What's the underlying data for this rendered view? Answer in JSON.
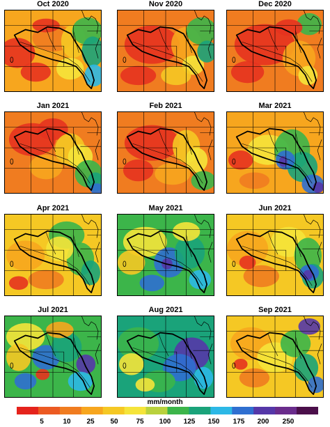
{
  "panels": [
    {
      "title": "Oct 2020",
      "base": "#f7a61e",
      "blobs": [
        [
          "#e5331f",
          18,
          62,
          26,
          22
        ],
        [
          "#e5331f",
          45,
          90,
          22,
          14
        ],
        [
          "#f07c20",
          70,
          40,
          30,
          20
        ],
        [
          "#f5c824",
          100,
          45,
          18,
          24
        ],
        [
          "#3cb54a",
          120,
          30,
          22,
          20
        ],
        [
          "#1aa37a",
          128,
          60,
          16,
          22
        ],
        [
          "#2cb8e6",
          130,
          95,
          14,
          16
        ],
        [
          "#f5e43a",
          95,
          85,
          20,
          16
        ],
        [
          "#e5331f",
          60,
          22,
          20,
          10
        ]
      ]
    },
    {
      "title": "Nov 2020",
      "base": "#f07c20",
      "blobs": [
        [
          "#e5331f",
          50,
          50,
          40,
          28
        ],
        [
          "#e5331f",
          30,
          95,
          26,
          14
        ],
        [
          "#f7a61e",
          100,
          50,
          22,
          26
        ],
        [
          "#f5e43a",
          110,
          80,
          16,
          14
        ],
        [
          "#3cb54a",
          122,
          30,
          22,
          20
        ],
        [
          "#1aa37a",
          130,
          60,
          14,
          16
        ],
        [
          "#f5c824",
          85,
          95,
          22,
          14
        ]
      ]
    },
    {
      "title": "Dec 2020",
      "base": "#f07c20",
      "blobs": [
        [
          "#e5331f",
          55,
          50,
          44,
          30
        ],
        [
          "#e5331f",
          30,
          90,
          24,
          16
        ],
        [
          "#f7a61e",
          105,
          70,
          24,
          26
        ],
        [
          "#f5e43a",
          118,
          95,
          14,
          14
        ],
        [
          "#3cb54a",
          120,
          20,
          18,
          16
        ],
        [
          "#e5331f",
          90,
          25,
          20,
          12
        ]
      ]
    },
    {
      "title": "Jan 2021",
      "base": "#f07c20",
      "blobs": [
        [
          "#e5331f",
          40,
          40,
          34,
          24
        ],
        [
          "#e5331f",
          70,
          25,
          22,
          16
        ],
        [
          "#f5c824",
          95,
          55,
          22,
          24
        ],
        [
          "#f5e43a",
          110,
          65,
          18,
          18
        ],
        [
          "#3cb54a",
          122,
          90,
          20,
          20
        ],
        [
          "#1aa37a",
          132,
          102,
          12,
          14
        ],
        [
          "#2f6fd0",
          134,
          112,
          10,
          8
        ],
        [
          "#f7a61e",
          60,
          80,
          24,
          18
        ]
      ]
    },
    {
      "title": "Feb 2021",
      "base": "#f07c20",
      "blobs": [
        [
          "#e5331f",
          50,
          45,
          40,
          26
        ],
        [
          "#e5331f",
          30,
          85,
          22,
          16
        ],
        [
          "#f5c824",
          100,
          50,
          20,
          24
        ],
        [
          "#f5e43a",
          115,
          70,
          16,
          18
        ],
        [
          "#3cb54a",
          125,
          100,
          18,
          14
        ],
        [
          "#f7a61e",
          80,
          90,
          26,
          16
        ]
      ]
    },
    {
      "title": "Mar 2021",
      "base": "#f7a61e",
      "blobs": [
        [
          "#f5e43a",
          60,
          55,
          30,
          22
        ],
        [
          "#3cb54a",
          95,
          55,
          26,
          30
        ],
        [
          "#1aa37a",
          110,
          80,
          22,
          22
        ],
        [
          "#2f6fd0",
          85,
          70,
          14,
          14
        ],
        [
          "#5537a8",
          82,
          72,
          6,
          8
        ],
        [
          "#2f6fd0",
          125,
          105,
          16,
          14
        ],
        [
          "#5537a8",
          133,
          110,
          8,
          8
        ],
        [
          "#e5331f",
          20,
          70,
          18,
          14
        ],
        [
          "#f07c20",
          40,
          100,
          22,
          12
        ]
      ]
    },
    {
      "title": "Apr 2021",
      "base": "#f5c824",
      "blobs": [
        [
          "#f7a61e",
          30,
          60,
          28,
          22
        ],
        [
          "#3cb54a",
          90,
          30,
          26,
          20
        ],
        [
          "#3cb54a",
          110,
          65,
          20,
          24
        ],
        [
          "#1aa37a",
          125,
          85,
          14,
          18
        ],
        [
          "#f07c20",
          60,
          95,
          26,
          14
        ],
        [
          "#f5e43a",
          80,
          50,
          20,
          18
        ],
        [
          "#e5331f",
          20,
          100,
          14,
          10
        ]
      ]
    },
    {
      "title": "May 2021",
      "base": "#3cb54a",
      "blobs": [
        [
          "#f5e43a",
          40,
          40,
          32,
          22
        ],
        [
          "#f5c824",
          20,
          70,
          20,
          18
        ],
        [
          "#2f6fd0",
          75,
          70,
          22,
          22
        ],
        [
          "#5537a8",
          72,
          72,
          8,
          8
        ],
        [
          "#1aa37a",
          105,
          55,
          22,
          24
        ],
        [
          "#2cb8e6",
          120,
          95,
          16,
          14
        ],
        [
          "#f5e43a",
          100,
          25,
          20,
          14
        ],
        [
          "#2f6fd0",
          50,
          100,
          18,
          12
        ]
      ]
    },
    {
      "title": "Jun 2021",
      "base": "#f5c824",
      "blobs": [
        [
          "#f7a61e",
          30,
          50,
          30,
          26
        ],
        [
          "#f07c20",
          50,
          90,
          26,
          16
        ],
        [
          "#f5e43a",
          90,
          40,
          26,
          22
        ],
        [
          "#3cb54a",
          118,
          60,
          20,
          26
        ],
        [
          "#1aa37a",
          125,
          90,
          16,
          18
        ],
        [
          "#2f6fd0",
          120,
          85,
          14,
          12
        ],
        [
          "#5537a8",
          118,
          88,
          7,
          7
        ],
        [
          "#e5331f",
          30,
          70,
          12,
          10
        ]
      ]
    },
    {
      "title": "Jul 2021",
      "base": "#3cb54a",
      "blobs": [
        [
          "#f5e43a",
          30,
          30,
          28,
          20
        ],
        [
          "#f5c824",
          20,
          60,
          18,
          20
        ],
        [
          "#2f6fd0",
          60,
          60,
          20,
          18
        ],
        [
          "#1aa37a",
          90,
          45,
          22,
          22
        ],
        [
          "#5537a8",
          118,
          70,
          14,
          14
        ],
        [
          "#2cb8e6",
          110,
          95,
          18,
          14
        ],
        [
          "#e5331f",
          55,
          85,
          10,
          8
        ],
        [
          "#f7a61e",
          80,
          20,
          20,
          12
        ],
        [
          "#2f6fd0",
          30,
          95,
          16,
          12
        ]
      ]
    },
    {
      "title": "Aug 2021",
      "base": "#1aa37a",
      "blobs": [
        [
          "#3cb54a",
          30,
          40,
          30,
          24
        ],
        [
          "#f5e43a",
          20,
          70,
          18,
          16
        ],
        [
          "#5537a8",
          108,
          55,
          26,
          24
        ],
        [
          "#2f6fd0",
          90,
          75,
          24,
          20
        ],
        [
          "#3cb54a",
          60,
          95,
          24,
          16
        ],
        [
          "#f5e43a",
          40,
          100,
          14,
          10
        ],
        [
          "#2cb8e6",
          125,
          90,
          14,
          16
        ]
      ]
    },
    {
      "title": "Sep 2021",
      "base": "#f5c824",
      "blobs": [
        [
          "#f7a61e",
          35,
          40,
          30,
          24
        ],
        [
          "#f5e43a",
          70,
          60,
          26,
          22
        ],
        [
          "#3cb54a",
          100,
          40,
          22,
          20
        ],
        [
          "#5537a8",
          120,
          15,
          16,
          12
        ],
        [
          "#1aa37a",
          115,
          75,
          18,
          20
        ],
        [
          "#2f6fd0",
          130,
          100,
          12,
          12
        ],
        [
          "#f07c20",
          40,
          90,
          22,
          14
        ],
        [
          "#e5331f",
          20,
          70,
          10,
          8
        ]
      ]
    }
  ],
  "legend": {
    "title": "mm/month",
    "colors": [
      "#e5231c",
      "#ec5a22",
      "#f07c20",
      "#f7a61e",
      "#f5c824",
      "#f5e43a",
      "#b9d13d",
      "#3cb54a",
      "#1aa37a",
      "#2cb8e6",
      "#2f6fd0",
      "#5537a8",
      "#6a2c8c",
      "#4b0f4a"
    ],
    "ticks": [
      "5",
      "10",
      "25",
      "50",
      "75",
      "100",
      "125",
      "150",
      "175",
      "200",
      "250"
    ]
  }
}
